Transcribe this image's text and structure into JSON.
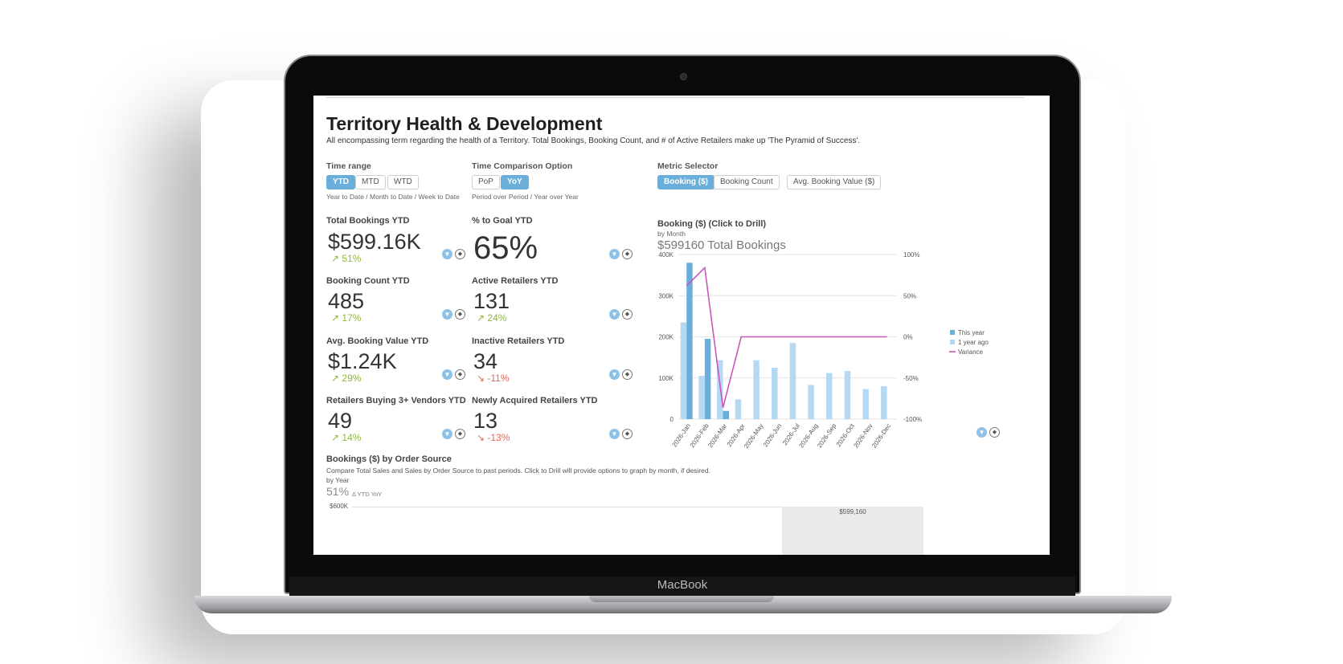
{
  "device": {
    "brand": "MacBook"
  },
  "page": {
    "title": "Territory Health & Development",
    "subtitle": "All encompassing term regarding the health of a Territory.  Total Bookings, Booking Count, and # of Active Retailers make up 'The Pyramid of Success'."
  },
  "controls": {
    "time_range": {
      "label": "Time range",
      "options": [
        "YTD",
        "MTD",
        "WTD"
      ],
      "selected": "YTD",
      "hint": "Year to Date / Month to Date / Week to Date"
    },
    "time_comparison": {
      "label": "Time Comparison Option",
      "options": [
        "PoP",
        "YoY"
      ],
      "selected": "YoY",
      "hint": "Period over Period / Year over Year"
    },
    "metric_selector": {
      "label": "Metric Selector",
      "options": [
        "Booking ($)",
        "Booking Count",
        "Avg. Booking Value ($)"
      ],
      "selected": "Booking ($)"
    }
  },
  "kpis": [
    {
      "title": "Total Bookings YTD",
      "value": "$599.16K",
      "change": "↗ 51%",
      "direction": "up"
    },
    {
      "title": "% to Goal YTD",
      "value": "65%",
      "change": "",
      "direction": "none"
    },
    {
      "title": "Booking Count YTD",
      "value": "485",
      "change": "↗ 17%",
      "direction": "up"
    },
    {
      "title": "Active Retailers YTD",
      "value": "131",
      "change": "↗ 24%",
      "direction": "up"
    },
    {
      "title": "Avg. Booking Value YTD",
      "value": "$1.24K",
      "change": "↗ 29%",
      "direction": "up"
    },
    {
      "title": "Inactive Retailers YTD",
      "value": "34",
      "change": "↘ -11%",
      "direction": "down"
    },
    {
      "title": "Retailers Buying 3+ Vendors YTD",
      "value": "49",
      "change": "↗ 14%",
      "direction": "up"
    },
    {
      "title": "Newly Acquired Retailers YTD",
      "value": "13",
      "change": "↘ -13%",
      "direction": "down"
    }
  ],
  "chart_panel": {
    "title": "Booking ($) (Click to Drill)",
    "subtitle": "by Month",
    "total": "$599160 Total Bookings"
  },
  "colors": {
    "accent": "#6aaedc",
    "this_year": "#6aaedc",
    "year_ago": "#b5d9f3",
    "variance": "#cc55bb",
    "up": "#8db838",
    "down": "#e06a5a"
  },
  "chart_data": {
    "type": "bar",
    "categories": [
      "2026-Jan",
      "2026-Feb",
      "2026-Mar",
      "2026-Apr",
      "2026-May",
      "2026-Jun",
      "2026-Jul",
      "2026-Aug",
      "2026-Sep",
      "2026-Oct",
      "2026-Nov",
      "2026-Dec"
    ],
    "series": [
      {
        "name": "This year",
        "values": [
          380000,
          195000,
          20000,
          0,
          0,
          0,
          0,
          0,
          0,
          0,
          0,
          0
        ]
      },
      {
        "name": "1 year ago",
        "values": [
          235000,
          105000,
          143000,
          48000,
          143000,
          125000,
          185000,
          83000,
          112000,
          117000,
          73000,
          80000
        ]
      },
      {
        "name": "Variance",
        "axis": "right",
        "values": [
          62,
          84,
          -86,
          0,
          0,
          0,
          0,
          0,
          0,
          0,
          0,
          0
        ]
      }
    ],
    "y_ticks": [
      "0",
      "100K",
      "200K",
      "300K",
      "400K"
    ],
    "y2_ticks": [
      "-100%",
      "-50%",
      "0%",
      "50%",
      "100%"
    ],
    "ylim": [
      0,
      400000
    ],
    "y2lim": [
      -100,
      100
    ],
    "legend": [
      "This year",
      "1 year ago",
      "Variance"
    ],
    "legend_position": "right",
    "grid": true
  },
  "order_source": {
    "title": "Bookings ($) by Order Source",
    "description": "Compare Total Sales and Sales by Order Source to past periods.  Click to Drill will provide options to graph by month, if desired.",
    "by": "by Year",
    "pct": "51%",
    "pct_label": "Δ YTD YoY",
    "y_label": "$600K",
    "bar_label": "$599,160"
  }
}
